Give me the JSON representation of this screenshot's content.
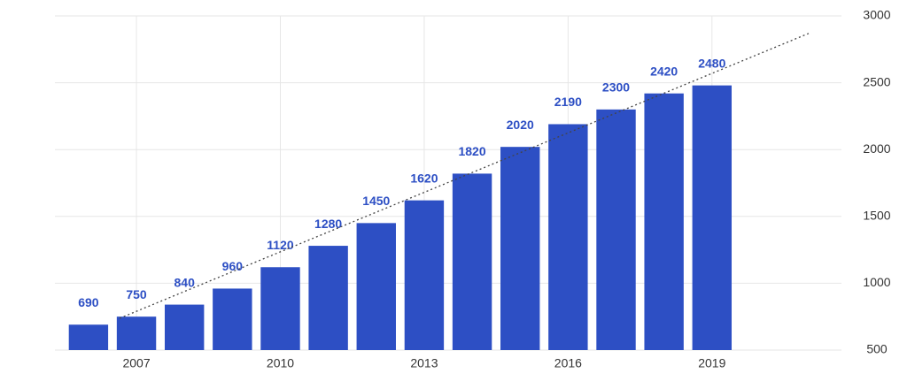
{
  "chart_data": {
    "type": "bar",
    "x": [
      2006,
      2007,
      2008,
      2009,
      2010,
      2011,
      2012,
      2013,
      2014,
      2015,
      2016,
      2017,
      2018,
      2019
    ],
    "values": [
      690,
      750,
      840,
      960,
      1120,
      1280,
      1450,
      1620,
      1820,
      2020,
      2190,
      2300,
      2420,
      2480
    ],
    "color": "#2d4fc4",
    "xlim": [
      2005.3,
      2021.7
    ],
    "xticks": [
      2007,
      2010,
      2013,
      2016,
      2019
    ],
    "ylim": [
      500,
      3000
    ],
    "yticks": [
      500,
      1000,
      1500,
      2000,
      2500,
      3000
    ],
    "grid": true,
    "trendline": {
      "x": [
        2006.65,
        2021.05
      ],
      "values": [
        738,
        2874
      ]
    }
  }
}
